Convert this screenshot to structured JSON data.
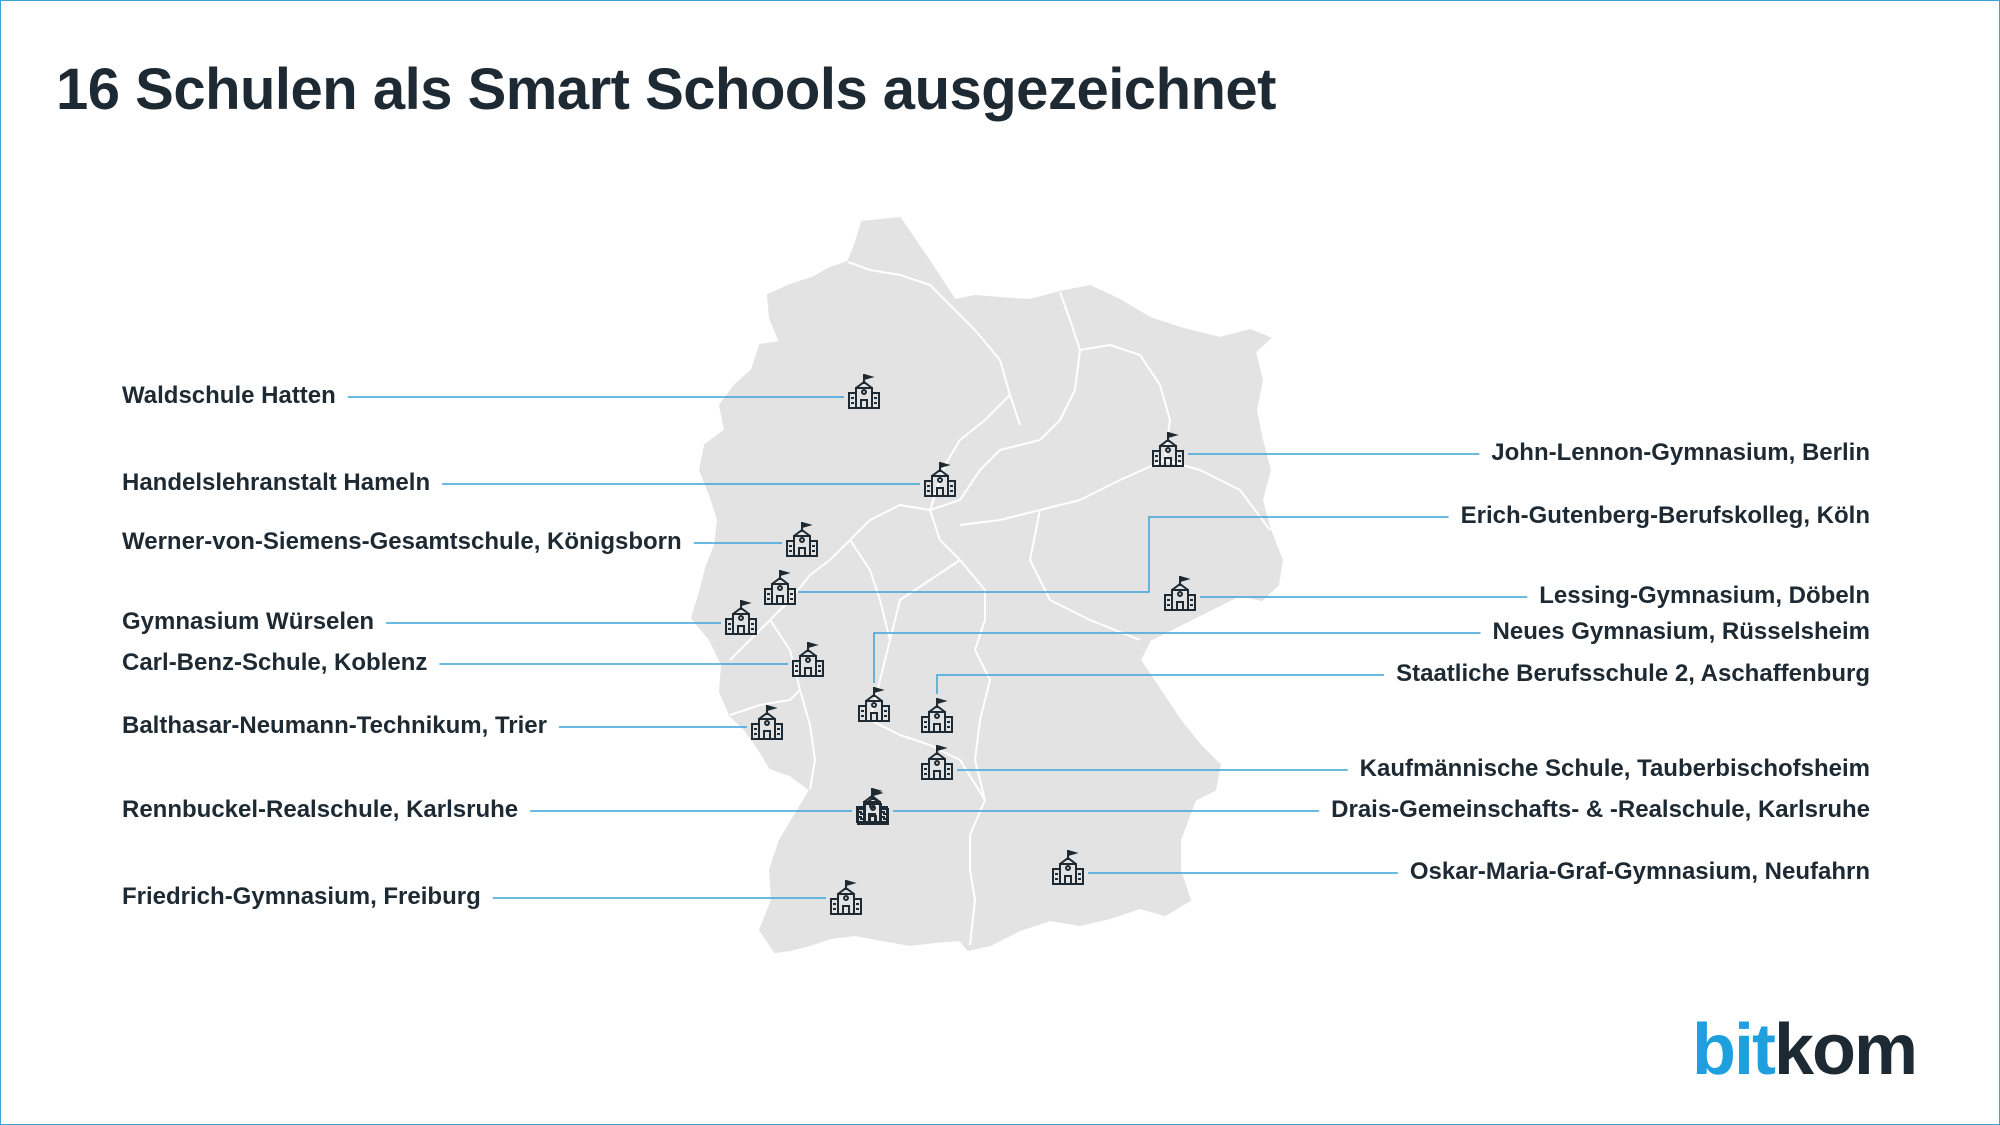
{
  "title": "16 Schulen als Smart Schools ausgezeichnet",
  "logo": {
    "part1": "bit",
    "part2": "kom"
  },
  "colors": {
    "map_fill": "#e3e3e3",
    "borders": "#ffffff",
    "leader_line": "#3aa3d9",
    "text": "#1e2a33",
    "brand_blue": "#1ea0df"
  },
  "icon": "school-building-icon",
  "schools": [
    {
      "name": "Waldschule Hatten",
      "side": "left"
    },
    {
      "name": "Handelslehranstalt Hameln",
      "side": "left"
    },
    {
      "name": "Werner-von-Siemens-Gesamtschule, Königsborn",
      "side": "left"
    },
    {
      "name": "Gymnasium Würselen",
      "side": "left"
    },
    {
      "name": "Carl-Benz-Schule, Koblenz",
      "side": "left"
    },
    {
      "name": "Balthasar-Neumann-Technikum, Trier",
      "side": "left"
    },
    {
      "name": "Rennbuckel-Realschule, Karlsruhe",
      "side": "left"
    },
    {
      "name": "Friedrich-Gymnasium, Freiburg",
      "side": "left"
    },
    {
      "name": "John-Lennon-Gymnasium, Berlin",
      "side": "right"
    },
    {
      "name": "Erich-Gutenberg-Berufskolleg, Köln",
      "side": "right"
    },
    {
      "name": "Lessing-Gymnasium, Döbeln",
      "side": "right"
    },
    {
      "name": "Neues Gymnasium, Rüsselsheim",
      "side": "right"
    },
    {
      "name": "Staatliche Berufsschule 2, Aschaffenburg",
      "side": "right"
    },
    {
      "name": "Kaufmännische Schule, Tauberbischofsheim",
      "side": "right"
    },
    {
      "name": "Drais-Gemeinschafts- & -Realschule, Karlsruhe",
      "side": "right"
    },
    {
      "name": "Oskar-Maria-Graf-Gymnasium, Neufahrn",
      "side": "right"
    }
  ]
}
